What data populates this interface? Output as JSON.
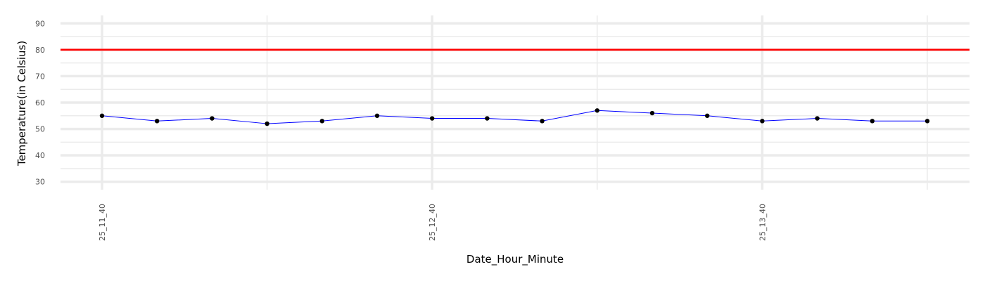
{
  "chart_data": {
    "type": "line",
    "title": "",
    "xlabel": "Date_Hour_Minute",
    "ylabel": "Temperature(in Celsius)",
    "x_tick_labels": [
      "25_11_40",
      "25_12_40",
      "25_13_40"
    ],
    "y_ticks": [
      30,
      40,
      50,
      60,
      70,
      80,
      90
    ],
    "ylim": [
      27,
      93
    ],
    "grid": true,
    "x_step_count": 16,
    "series": [
      {
        "values": [
          55,
          53,
          54,
          52,
          53,
          55,
          54,
          54,
          53,
          57,
          56,
          55,
          53,
          54,
          53,
          53
        ],
        "color": "#0000ff",
        "point_color": "#000000"
      }
    ],
    "reference_lines": [
      {
        "y": 80,
        "color": "#ff0000"
      }
    ]
  }
}
